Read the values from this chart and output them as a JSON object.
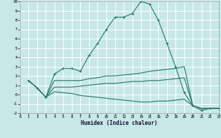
{
  "xlabel": "Humidex (Indice chaleur)",
  "bg_color": "#c8e8e8",
  "grid_color": "#ffffff",
  "line_color": "#2a7a6a",
  "xlim": [
    0,
    23
  ],
  "ylim": [
    -2,
    10
  ],
  "xticks": [
    0,
    1,
    2,
    3,
    4,
    5,
    6,
    7,
    8,
    9,
    10,
    11,
    12,
    13,
    14,
    15,
    16,
    17,
    18,
    19,
    20,
    21,
    22,
    23
  ],
  "yticks": [
    -2,
    -1,
    0,
    1,
    2,
    3,
    4,
    5,
    6,
    7,
    8,
    9,
    10
  ],
  "curve1_x": [
    1,
    2,
    3,
    4,
    5,
    6,
    7,
    8,
    9,
    10,
    11,
    12,
    13,
    14,
    15,
    16,
    17,
    18,
    19,
    20,
    21,
    22,
    23
  ],
  "curve1_y": [
    1.5,
    0.7,
    -0.3,
    2.2,
    2.8,
    2.8,
    2.5,
    4.2,
    5.5,
    7.0,
    8.3,
    8.3,
    8.7,
    10.0,
    9.7,
    8.0,
    5.5,
    3.0,
    0.2,
    -1.2,
    -1.7,
    -1.5,
    -1.5
  ],
  "curve2_x": [
    1,
    2,
    3,
    4,
    5,
    6,
    7,
    8,
    9,
    10,
    11,
    12,
    13,
    14,
    15,
    16,
    17,
    18,
    19,
    20,
    21,
    22,
    23
  ],
  "curve2_y": [
    1.5,
    0.7,
    -0.3,
    1.5,
    1.5,
    1.5,
    1.5,
    1.7,
    1.8,
    2.0,
    2.0,
    2.1,
    2.2,
    2.3,
    2.5,
    2.6,
    2.7,
    2.8,
    3.0,
    -1.2,
    -1.5,
    -1.5,
    -1.5
  ],
  "curve3_x": [
    1,
    2,
    3,
    4,
    5,
    6,
    7,
    8,
    9,
    10,
    11,
    12,
    13,
    14,
    15,
    16,
    17,
    18,
    19,
    20,
    21,
    22,
    23
  ],
  "curve3_y": [
    1.5,
    0.7,
    -0.3,
    0.8,
    0.8,
    0.8,
    0.9,
    1.0,
    1.1,
    1.2,
    1.2,
    1.3,
    1.4,
    1.4,
    1.5,
    1.5,
    1.6,
    1.7,
    1.8,
    -1.2,
    -1.5,
    -1.5,
    -1.5
  ],
  "curve4_x": [
    1,
    2,
    3,
    4,
    5,
    6,
    7,
    8,
    9,
    10,
    11,
    12,
    13,
    14,
    15,
    16,
    17,
    18,
    19,
    20,
    21,
    22,
    23
  ],
  "curve4_y": [
    1.5,
    0.7,
    -0.3,
    0.3,
    0.2,
    0.1,
    -0.1,
    -0.2,
    -0.3,
    -0.4,
    -0.5,
    -0.6,
    -0.7,
    -0.8,
    -0.8,
    -0.7,
    -0.7,
    -0.6,
    -0.5,
    -1.2,
    -1.5,
    -1.5,
    -1.5
  ]
}
